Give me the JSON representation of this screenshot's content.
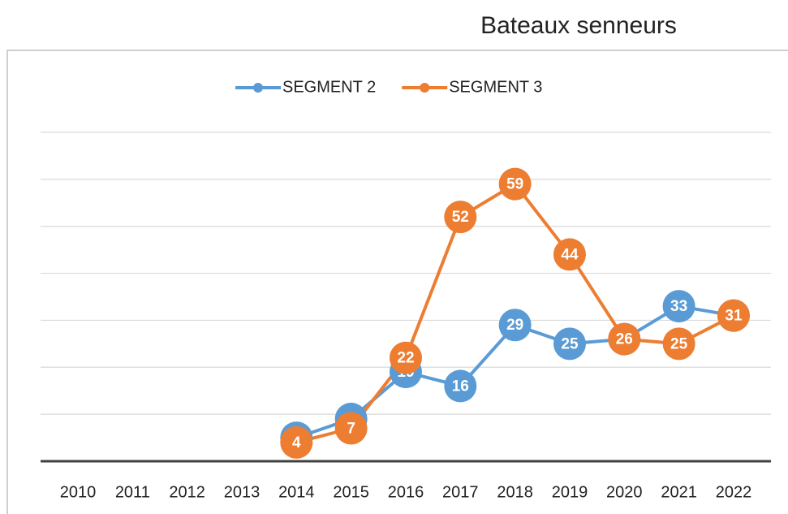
{
  "chart_data": {
    "type": "line",
    "title": "Bateaux senneurs",
    "categories": [
      "2010",
      "2011",
      "2012",
      "2013",
      "2014",
      "2015",
      "2016",
      "2017",
      "2018",
      "2019",
      "2020",
      "2021",
      "2022"
    ],
    "series": [
      {
        "name": "SEGMENT 2",
        "color": "#5b9bd5",
        "values": [
          null,
          null,
          null,
          null,
          5,
          9,
          19,
          16,
          29,
          25,
          26,
          33,
          31
        ]
      },
      {
        "name": "SEGMENT 3",
        "color": "#ed7d31",
        "values": [
          null,
          null,
          null,
          null,
          4,
          7,
          22,
          52,
          59,
          44,
          26,
          25,
          31
        ]
      }
    ],
    "ylim": [
      0,
      70
    ],
    "yticks": [
      0,
      10,
      20,
      30,
      40,
      50,
      60,
      70
    ],
    "grid": true,
    "legend": "top"
  }
}
